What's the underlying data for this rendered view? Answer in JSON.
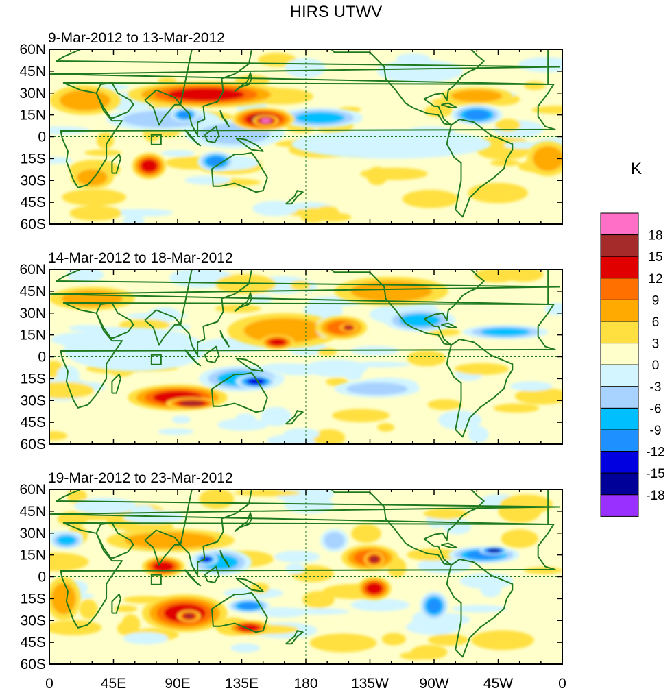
{
  "title": "HIRS UTWV",
  "colorbar": {
    "unit": "K",
    "levels": [
      "18",
      "15",
      "12",
      "9",
      "6",
      "3",
      "0",
      "-3",
      "-6",
      "-9",
      "-12",
      "-15",
      "-18"
    ],
    "colors": [
      "#ff6ec7",
      "#a52a2a",
      "#e00000",
      "#ff7000",
      "#ffaa00",
      "#ffe040",
      "#ffffcc",
      "#d2f5ff",
      "#a8d2ff",
      "#00bfff",
      "#1e90ff",
      "#0000e0",
      "#000099",
      "#9a30ff"
    ]
  },
  "axes": {
    "y_ticks": [
      "60N",
      "45N",
      "30N",
      "15N",
      "0",
      "15S",
      "30S",
      "45S",
      "60S"
    ],
    "x_ticks": [
      "0",
      "45E",
      "90E",
      "135E",
      "180",
      "135W",
      "90W",
      "45W",
      "0"
    ],
    "lat_range": [
      -60,
      60
    ],
    "lon_range": [
      0,
      360
    ]
  },
  "panels": [
    {
      "title": "9-Mar-2012 to 13-Mar-2012",
      "blobs": [
        {
          "lon": 110,
          "lat": 29,
          "rx": 55,
          "ry": 9,
          "v": 12
        },
        {
          "lon": 150,
          "lat": 12,
          "rx": 22,
          "ry": 8,
          "v": 15
        },
        {
          "lon": 152,
          "lat": 11,
          "rx": 9,
          "ry": 4,
          "v": 18
        },
        {
          "lon": 70,
          "lat": -20,
          "rx": 12,
          "ry": 9,
          "v": 12
        },
        {
          "lon": 25,
          "lat": 25,
          "rx": 25,
          "ry": 10,
          "v": 6
        },
        {
          "lon": 80,
          "lat": 12,
          "rx": 40,
          "ry": 8,
          "v": -6
        },
        {
          "lon": 95,
          "lat": 15,
          "rx": 10,
          "ry": 5,
          "v": -12
        },
        {
          "lon": 117,
          "lat": -17,
          "rx": 13,
          "ry": 7,
          "v": -12
        },
        {
          "lon": 190,
          "lat": 13,
          "rx": 30,
          "ry": 7,
          "v": -9
        },
        {
          "lon": 300,
          "lat": 15,
          "rx": 18,
          "ry": 7,
          "v": -12
        },
        {
          "lon": 300,
          "lat": 28,
          "rx": 25,
          "ry": 6,
          "v": 6
        },
        {
          "lon": 350,
          "lat": -15,
          "rx": 15,
          "ry": 12,
          "v": 6
        },
        {
          "lon": 30,
          "lat": -28,
          "rx": 15,
          "ry": 8,
          "v": 6
        },
        {
          "lon": 240,
          "lat": -5,
          "rx": 70,
          "ry": 10,
          "v": -3
        },
        {
          "lon": 130,
          "lat": 2,
          "rx": 35,
          "ry": 10,
          "v": -6
        },
        {
          "lon": 260,
          "lat": 45,
          "rx": 30,
          "ry": 8,
          "v": -3
        }
      ]
    },
    {
      "title": "14-Mar-2012 to 18-Mar-2012",
      "blobs": [
        {
          "lon": 90,
          "lat": -28,
          "rx": 35,
          "ry": 9,
          "v": 12
        },
        {
          "lon": 100,
          "lat": -32,
          "rx": 18,
          "ry": 4,
          "v": 15
        },
        {
          "lon": 165,
          "lat": 18,
          "rx": 40,
          "ry": 12,
          "v": 6
        },
        {
          "lon": 160,
          "lat": 10,
          "rx": 12,
          "ry": 5,
          "v": 12
        },
        {
          "lon": 205,
          "lat": 20,
          "rx": 18,
          "ry": 8,
          "v": 9
        },
        {
          "lon": 210,
          "lat": 20,
          "rx": 6,
          "ry": 3,
          "v": 15
        },
        {
          "lon": 195,
          "lat": 20,
          "rx": 8,
          "ry": 7,
          "v": -6
        },
        {
          "lon": 135,
          "lat": -15,
          "rx": 30,
          "ry": 9,
          "v": -9
        },
        {
          "lon": 145,
          "lat": -17,
          "rx": 14,
          "ry": 5,
          "v": -15
        },
        {
          "lon": 260,
          "lat": 25,
          "rx": 25,
          "ry": 8,
          "v": -9
        },
        {
          "lon": 320,
          "lat": 17,
          "rx": 30,
          "ry": 5,
          "v": -9
        },
        {
          "lon": 230,
          "lat": -22,
          "rx": 30,
          "ry": 6,
          "v": -6
        },
        {
          "lon": 240,
          "lat": 45,
          "rx": 40,
          "ry": 10,
          "v": 6
        },
        {
          "lon": 60,
          "lat": 5,
          "rx": 50,
          "ry": 15,
          "v": -3
        },
        {
          "lon": 30,
          "lat": 40,
          "rx": 30,
          "ry": 8,
          "v": 6
        }
      ]
    },
    {
      "title": "19-Mar-2012 to 23-Mar-2012",
      "blobs": [
        {
          "lon": 95,
          "lat": -25,
          "rx": 30,
          "ry": 13,
          "v": 12
        },
        {
          "lon": 98,
          "lat": -27,
          "rx": 8,
          "ry": 4,
          "v": 15
        },
        {
          "lon": 80,
          "lat": 7,
          "rx": 15,
          "ry": 7,
          "v": 12
        },
        {
          "lon": 85,
          "lat": 25,
          "rx": 45,
          "ry": 8,
          "v": 6
        },
        {
          "lon": 140,
          "lat": -35,
          "rx": 15,
          "ry": 5,
          "v": 12
        },
        {
          "lon": 120,
          "lat": 10,
          "rx": 22,
          "ry": 9,
          "v": -9
        },
        {
          "lon": 110,
          "lat": 12,
          "rx": 8,
          "ry": 4,
          "v": -15
        },
        {
          "lon": 140,
          "lat": -20,
          "rx": 15,
          "ry": 5,
          "v": -12
        },
        {
          "lon": 225,
          "lat": 13,
          "rx": 20,
          "ry": 9,
          "v": 9
        },
        {
          "lon": 228,
          "lat": 12,
          "rx": 7,
          "ry": 5,
          "v": 15
        },
        {
          "lon": 228,
          "lat": -8,
          "rx": 12,
          "ry": 8,
          "v": 12
        },
        {
          "lon": 270,
          "lat": -20,
          "rx": 10,
          "ry": 10,
          "v": -12
        },
        {
          "lon": 305,
          "lat": 15,
          "rx": 25,
          "ry": 6,
          "v": -12
        },
        {
          "lon": 312,
          "lat": 18,
          "rx": 10,
          "ry": 3,
          "v": -18
        },
        {
          "lon": 10,
          "lat": -15,
          "rx": 12,
          "ry": 15,
          "v": 6
        },
        {
          "lon": 12,
          "lat": 25,
          "rx": 12,
          "ry": 6,
          "v": -9
        },
        {
          "lon": 200,
          "lat": 25,
          "rx": 10,
          "ry": 8,
          "v": -6
        },
        {
          "lon": 330,
          "lat": 45,
          "rx": 15,
          "ry": 8,
          "v": 3
        }
      ]
    }
  ]
}
